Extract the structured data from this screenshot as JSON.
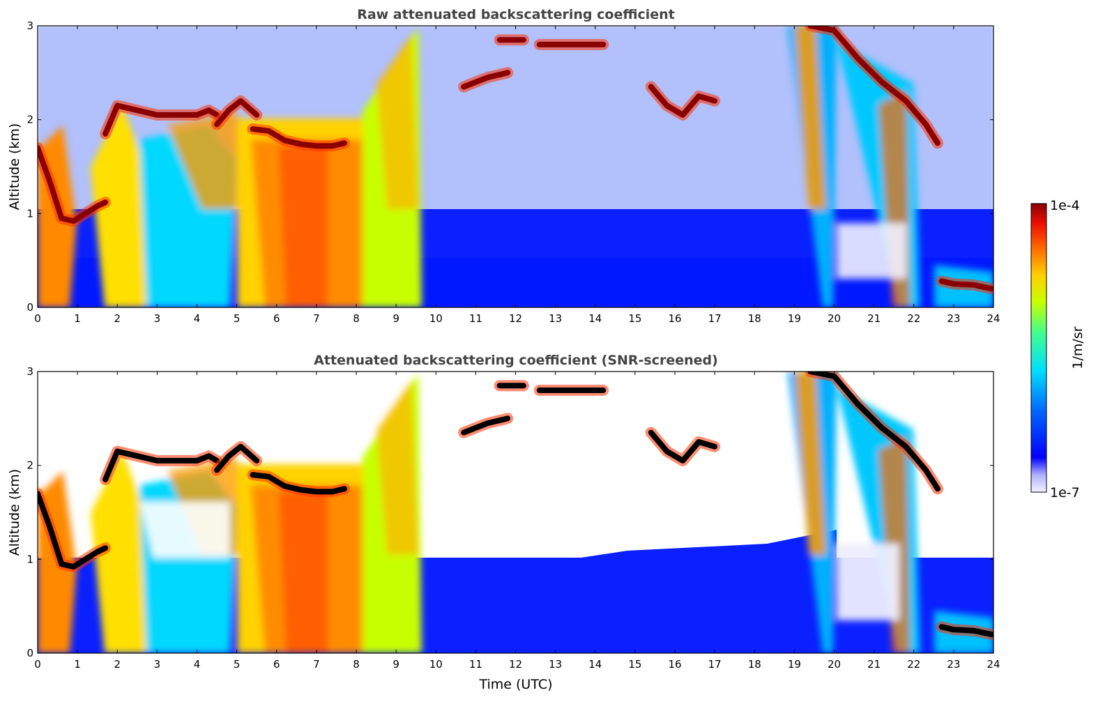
{
  "chart_data": [
    {
      "type": "heatmap",
      "title": "Raw attenuated backscattering coefficient",
      "xlabel": "",
      "ylabel": "Altitude (km)",
      "xlim": [
        0,
        24
      ],
      "ylim": [
        0,
        3
      ],
      "xticks": [
        "0",
        "1",
        "2",
        "3",
        "4",
        "5",
        "6",
        "7",
        "8",
        "9",
        "10",
        "11",
        "12",
        "13",
        "14",
        "15",
        "16",
        "17",
        "18",
        "19",
        "20",
        "21",
        "22",
        "23",
        "24"
      ],
      "yticks": [
        "0",
        "1",
        "2",
        "3"
      ],
      "screened": false,
      "cloud_layers": [
        {
          "t": [
            0.0,
            0.3,
            0.6,
            0.9,
            1.2,
            1.5,
            1.7
          ],
          "z": [
            1.7,
            1.35,
            0.95,
            0.92,
            1.0,
            1.08,
            1.12
          ]
        },
        {
          "t": [
            1.7,
            2.0,
            2.5,
            3.0,
            3.5,
            4.0,
            4.3,
            4.5
          ],
          "z": [
            1.85,
            2.15,
            2.1,
            2.05,
            2.05,
            2.05,
            2.1,
            2.05
          ]
        },
        {
          "t": [
            4.5,
            4.8,
            5.1,
            5.5
          ],
          "z": [
            1.95,
            2.1,
            2.2,
            2.05
          ]
        },
        {
          "t": [
            5.4,
            5.8,
            6.2,
            6.6,
            7.0,
            7.4,
            7.7
          ],
          "z": [
            1.9,
            1.88,
            1.78,
            1.74,
            1.72,
            1.72,
            1.75
          ]
        },
        {
          "t": [
            11.6,
            12.2
          ],
          "z": [
            2.85,
            2.85
          ]
        },
        {
          "t": [
            12.6,
            14.2
          ],
          "z": [
            2.8,
            2.8
          ]
        },
        {
          "t": [
            10.7,
            11.3,
            11.8
          ],
          "z": [
            2.35,
            2.45,
            2.5
          ]
        },
        {
          "t": [
            15.4,
            15.8,
            16.2,
            16.6,
            17.0
          ],
          "z": [
            2.35,
            2.15,
            2.05,
            2.25,
            2.2
          ]
        },
        {
          "t": [
            19.4,
            20.0,
            20.6,
            21.2,
            21.8,
            22.3,
            22.6
          ],
          "z": [
            3.0,
            2.95,
            2.65,
            2.4,
            2.2,
            1.95,
            1.75
          ]
        },
        {
          "t": [
            22.7,
            23.0,
            23.5,
            23.95
          ],
          "z": [
            0.28,
            0.25,
            0.24,
            0.2
          ]
        }
      ]
    },
    {
      "type": "heatmap",
      "title": "Attenuated backscattering coefficient (SNR-screened)",
      "xlabel": "Time (UTC)",
      "ylabel": "Altitude (km)",
      "xlim": [
        0,
        24
      ],
      "ylim": [
        0,
        3
      ],
      "xticks": [
        "0",
        "1",
        "2",
        "3",
        "4",
        "5",
        "6",
        "7",
        "8",
        "9",
        "10",
        "11",
        "12",
        "13",
        "14",
        "15",
        "16",
        "17",
        "18",
        "19",
        "20",
        "21",
        "22",
        "23",
        "24"
      ],
      "yticks": [
        "0",
        "1",
        "2",
        "3"
      ],
      "screened": true,
      "cloud_layers": [
        {
          "t": [
            0.0,
            0.3,
            0.6,
            0.9,
            1.2,
            1.5,
            1.7
          ],
          "z": [
            1.7,
            1.35,
            0.95,
            0.92,
            1.0,
            1.08,
            1.12
          ]
        },
        {
          "t": [
            1.7,
            2.0,
            2.5,
            3.0,
            3.5,
            4.0,
            4.3,
            4.5
          ],
          "z": [
            1.85,
            2.15,
            2.1,
            2.05,
            2.05,
            2.05,
            2.1,
            2.05
          ]
        },
        {
          "t": [
            4.5,
            4.8,
            5.1,
            5.5
          ],
          "z": [
            1.95,
            2.1,
            2.2,
            2.05
          ]
        },
        {
          "t": [
            5.4,
            5.8,
            6.2,
            6.6,
            7.0,
            7.4,
            7.7
          ],
          "z": [
            1.9,
            1.88,
            1.78,
            1.74,
            1.72,
            1.72,
            1.75
          ]
        },
        {
          "t": [
            11.6,
            12.2
          ],
          "z": [
            2.85,
            2.85
          ]
        },
        {
          "t": [
            12.6,
            14.2
          ],
          "z": [
            2.8,
            2.8
          ]
        },
        {
          "t": [
            10.7,
            11.3,
            11.8
          ],
          "z": [
            2.35,
            2.45,
            2.5
          ]
        },
        {
          "t": [
            15.4,
            15.8,
            16.2,
            16.6,
            17.0
          ],
          "z": [
            2.35,
            2.15,
            2.05,
            2.25,
            2.2
          ]
        },
        {
          "t": [
            19.4,
            20.0,
            20.6,
            21.2,
            21.8,
            22.3,
            22.6
          ],
          "z": [
            3.0,
            2.95,
            2.65,
            2.4,
            2.2,
            1.95,
            1.75
          ]
        },
        {
          "t": [
            22.7,
            23.0,
            23.5,
            23.95
          ],
          "z": [
            0.28,
            0.25,
            0.24,
            0.2
          ]
        }
      ]
    }
  ],
  "colorbar": {
    "label": "1/m/sr",
    "max_label": "1e-4",
    "min_label": "1e-7",
    "colormap": [
      "#eeeeff",
      "#b0b0ff",
      "#0000ff",
      "#0080ff",
      "#00e0ff",
      "#40ff80",
      "#c0ff00",
      "#ffdd00",
      "#ff8000",
      "#ff2000",
      "#990000"
    ]
  }
}
